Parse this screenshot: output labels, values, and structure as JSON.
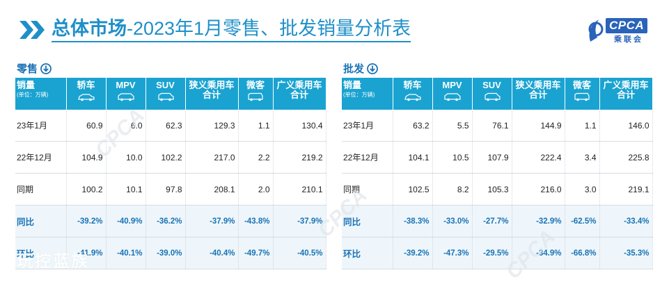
{
  "header": {
    "title_bold": "总体市场",
    "title_rest": "-2023年1月零售、批发销量分析表",
    "logo_text": "CPCA",
    "logo_sub": "乘联会"
  },
  "watermark": {
    "text": "玩控蓝族",
    "logo": "CPCA"
  },
  "columns": {
    "first_label": "销量",
    "first_sub": "(单位：万辆)",
    "items": [
      {
        "label": "轿车"
      },
      {
        "label": "MPV"
      },
      {
        "label": "SUV"
      },
      {
        "label": "狭义乘用车",
        "label2": "合计"
      },
      {
        "label": "微客"
      },
      {
        "label": "广义乘用车",
        "label2": "合计"
      }
    ]
  },
  "retail": {
    "section_label": "零售",
    "rows": [
      {
        "label": "23年1月",
        "values": [
          "60.9",
          "6.0",
          "62.3",
          "129.3",
          "1.1",
          "130.4"
        ]
      },
      {
        "label": "22年12月",
        "values": [
          "104.9",
          "10.0",
          "102.2",
          "217.0",
          "2.2",
          "219.2"
        ]
      },
      {
        "label": "同期",
        "values": [
          "100.2",
          "10.1",
          "97.8",
          "208.1",
          "2.0",
          "210.1"
        ]
      },
      {
        "label": "同比",
        "values": [
          "-39.2%",
          "-40.9%",
          "-36.2%",
          "-37.9%",
          "-43.8%",
          "-37.9%"
        ]
      },
      {
        "label": "环比",
        "values": [
          "-41.9%",
          "-40.1%",
          "-39.0%",
          "-40.4%",
          "-49.7%",
          "-40.5%"
        ]
      }
    ]
  },
  "wholesale": {
    "section_label": "批发",
    "rows": [
      {
        "label": "23年1月",
        "values": [
          "63.2",
          "5.5",
          "76.1",
          "144.9",
          "1.1",
          "146.0"
        ]
      },
      {
        "label": "22年12月",
        "values": [
          "104.1",
          "10.5",
          "107.9",
          "222.4",
          "3.4",
          "225.8"
        ]
      },
      {
        "label": "同期",
        "values": [
          "102.5",
          "8.2",
          "105.3",
          "216.0",
          "3.0",
          "219.1"
        ]
      },
      {
        "label": "同比",
        "values": [
          "-38.3%",
          "-33.0%",
          "-27.7%",
          "-32.9%",
          "-62.5%",
          "-33.4%"
        ]
      },
      {
        "label": "环比",
        "values": [
          "-39.2%",
          "-47.3%",
          "-29.5%",
          "-34.9%",
          "-66.8%",
          "-35.3%"
        ]
      }
    ]
  },
  "colors": {
    "accent": "#1aa3d1",
    "title": "#1f8fc8",
    "pct_text": "#1a73b5",
    "pct_bg": "#eef6fb"
  }
}
